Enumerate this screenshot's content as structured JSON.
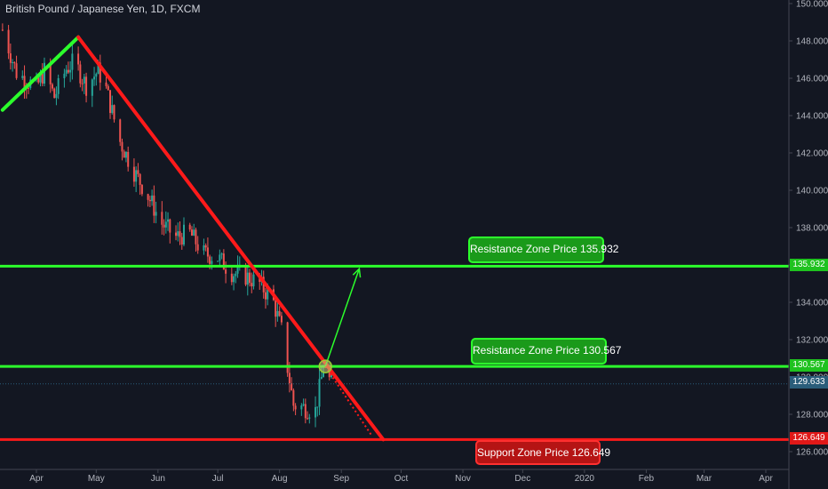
{
  "header": {
    "title": "British Pound / Japanese Yen, 1D, FXCM"
  },
  "colors": {
    "background": "#131722",
    "bull": "#26a69a",
    "bear": "#ef5350",
    "trendline": "#ff1a1a",
    "support": "#ff1a1a",
    "resistance": "#2cff2c",
    "axis_text": "#b2b5be",
    "current_price": "#2a5d7a"
  },
  "chart_data": {
    "type": "candlestick",
    "title": "British Pound / Japanese Yen, 1D, FXCM",
    "x_tick_labels": [
      "Apr",
      "May",
      "Jun",
      "Jul",
      "Aug",
      "Sep",
      "Oct",
      "Nov",
      "Dec",
      "2020",
      "Feb",
      "Mar",
      "Apr"
    ],
    "y_tick_labels": [
      "126.000",
      "128.000",
      "130.000",
      "132.000",
      "134.000",
      "136.000",
      "138.000",
      "140.000",
      "142.000",
      "144.000",
      "146.000",
      "148.000",
      "150.000"
    ],
    "ylim": [
      125.6,
      150.2
    ],
    "price_path": [
      [
        "2019-03-15",
        148.6
      ],
      [
        "2019-03-22",
        146.3
      ],
      [
        "2019-04-01",
        145.5
      ],
      [
        "2019-04-05",
        146.4
      ],
      [
        "2019-04-10",
        145.0
      ],
      [
        "2019-04-16",
        146.5
      ],
      [
        "2019-04-20",
        146.9
      ],
      [
        "2019-04-26",
        145.6
      ],
      [
        "2019-05-02",
        146.4
      ],
      [
        "2019-05-06",
        145.4
      ],
      [
        "2019-05-13",
        142.6
      ],
      [
        "2019-05-20",
        141.0
      ],
      [
        "2019-05-27",
        139.7
      ],
      [
        "2019-06-03",
        138.2
      ],
      [
        "2019-06-10",
        137.5
      ],
      [
        "2019-06-17",
        137.7
      ],
      [
        "2019-06-24",
        136.6
      ],
      [
        "2019-07-01",
        136.4
      ],
      [
        "2019-07-08",
        135.6
      ],
      [
        "2019-07-15",
        135.4
      ],
      [
        "2019-07-22",
        135.0
      ],
      [
        "2019-07-29",
        134.0
      ],
      [
        "2019-08-02",
        132.5
      ],
      [
        "2019-08-08",
        128.5
      ],
      [
        "2019-08-12",
        128.4
      ],
      [
        "2019-08-19",
        128.2
      ],
      [
        "2019-08-23",
        130.5
      ],
      [
        "2019-08-27",
        129.63
      ]
    ],
    "levels": [
      {
        "name": "Resistance Zone Price 135.932",
        "price": 135.932,
        "tag": "135.932",
        "kind": "resistance"
      },
      {
        "name": "Resistance Zone Price 130.567",
        "price": 130.567,
        "tag": "130.567",
        "kind": "resistance"
      },
      {
        "name": "Support Zone Price 126.649",
        "price": 126.649,
        "tag": "126.649",
        "kind": "support"
      }
    ],
    "current_price": {
      "value": 129.633,
      "tag": "129.633"
    },
    "trendlines": [
      {
        "name": "uptrend",
        "from": [
          "2019-03-15",
          144.3
        ],
        "to": [
          "2019-04-22",
          148.2
        ],
        "color": "#2cff2c"
      },
      {
        "name": "downtrend",
        "from": [
          "2019-04-22",
          148.2
        ],
        "to": [
          "2019-09-22",
          126.65
        ],
        "color": "#ff1a1a"
      }
    ],
    "breakout_circle": [
      "2019-08-24",
      130.567
    ],
    "projection_arrow": {
      "from": [
        "2019-08-24",
        130.567
      ],
      "to": [
        "2019-09-10",
        135.8
      ]
    },
    "dotted_projection": {
      "from": [
        "2019-08-24",
        130.567
      ],
      "to": [
        "2019-09-16",
        126.9
      ]
    }
  }
}
